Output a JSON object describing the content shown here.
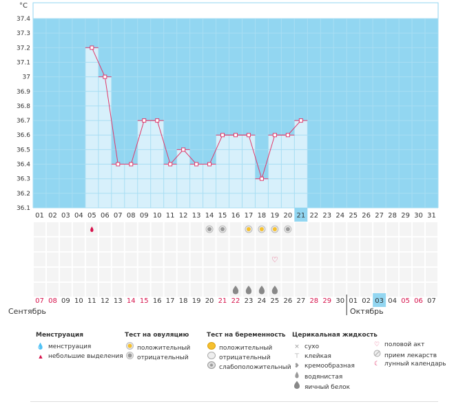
{
  "chart_data": {
    "type": "line",
    "unit": "°C",
    "ylim": [
      36.1,
      37.4
    ],
    "yticks": [
      "37.4",
      "37.3",
      "37.2",
      "37.1",
      "37",
      "36.9",
      "36.8",
      "36.7",
      "36.6",
      "36.5",
      "36.4",
      "36.3",
      "36.2",
      "36.1"
    ],
    "days": [
      "01",
      "02",
      "03",
      "04",
      "05",
      "06",
      "07",
      "08",
      "09",
      "10",
      "11",
      "12",
      "13",
      "14",
      "15",
      "16",
      "17",
      "18",
      "19",
      "20",
      "21",
      "22",
      "23",
      "24",
      "25",
      "26",
      "27",
      "28",
      "29",
      "30",
      "31"
    ],
    "today_index": 20,
    "series": [
      {
        "name": "temperature",
        "values": [
          null,
          null,
          null,
          null,
          37.2,
          37.0,
          36.4,
          36.4,
          36.7,
          36.7,
          36.4,
          36.5,
          36.4,
          36.4,
          36.6,
          36.6,
          36.6,
          36.3,
          36.6,
          36.6,
          36.7,
          null,
          null,
          null,
          null,
          null,
          null,
          null,
          null,
          null,
          null
        ]
      }
    ],
    "dates": [
      "07",
      "08",
      "09",
      "10",
      "11",
      "12",
      "13",
      "14",
      "15",
      "16",
      "17",
      "18",
      "19",
      "20",
      "21",
      "22",
      "23",
      "24",
      "25",
      "26",
      "27",
      "28",
      "29",
      "30",
      "01",
      "02",
      "03",
      "04",
      "05",
      "06",
      "07"
    ],
    "date_red": [
      true,
      true,
      false,
      false,
      false,
      false,
      false,
      true,
      true,
      false,
      false,
      false,
      false,
      false,
      true,
      true,
      false,
      false,
      false,
      false,
      false,
      true,
      true,
      false,
      false,
      false,
      false,
      false,
      true,
      true,
      false
    ],
    "month1": "Сентябрь",
    "month2": "Октябрь",
    "month_split_index": 24,
    "markers": {
      "menstruation": [
        4
      ],
      "ovulation_positive": [
        16,
        17,
        18
      ],
      "ovulation_negative": [
        13,
        14,
        19
      ],
      "intercourse": [
        18
      ],
      "fluid_egg_white": [
        15,
        16,
        17,
        18
      ]
    }
  },
  "legend": {
    "menstruation": {
      "title": "Менструация",
      "items": [
        "менструация",
        "небольшие выделения"
      ]
    },
    "ovulation_test": {
      "title": "Тест на овуляцию",
      "items": [
        "положительный",
        "отрицательный"
      ]
    },
    "pregnancy_test": {
      "title": "Тест на беременность",
      "items": [
        "положительный",
        "отрицательный",
        "слабоположительный"
      ]
    },
    "cervical_fluid": {
      "title": "Церикальная жидкость",
      "items": [
        "сухо",
        "клейкая",
        "кремообразная",
        "водянистая",
        "яичный белок"
      ]
    },
    "other": {
      "items": [
        "половой акт",
        "прием лекарств",
        "лунный календарь"
      ]
    }
  },
  "colors": {
    "plot_bg": "#92d6f1",
    "bar": "#d7f0fb",
    "line": "#e0386a",
    "today": "#92d6f1",
    "red": "#d6104a"
  }
}
